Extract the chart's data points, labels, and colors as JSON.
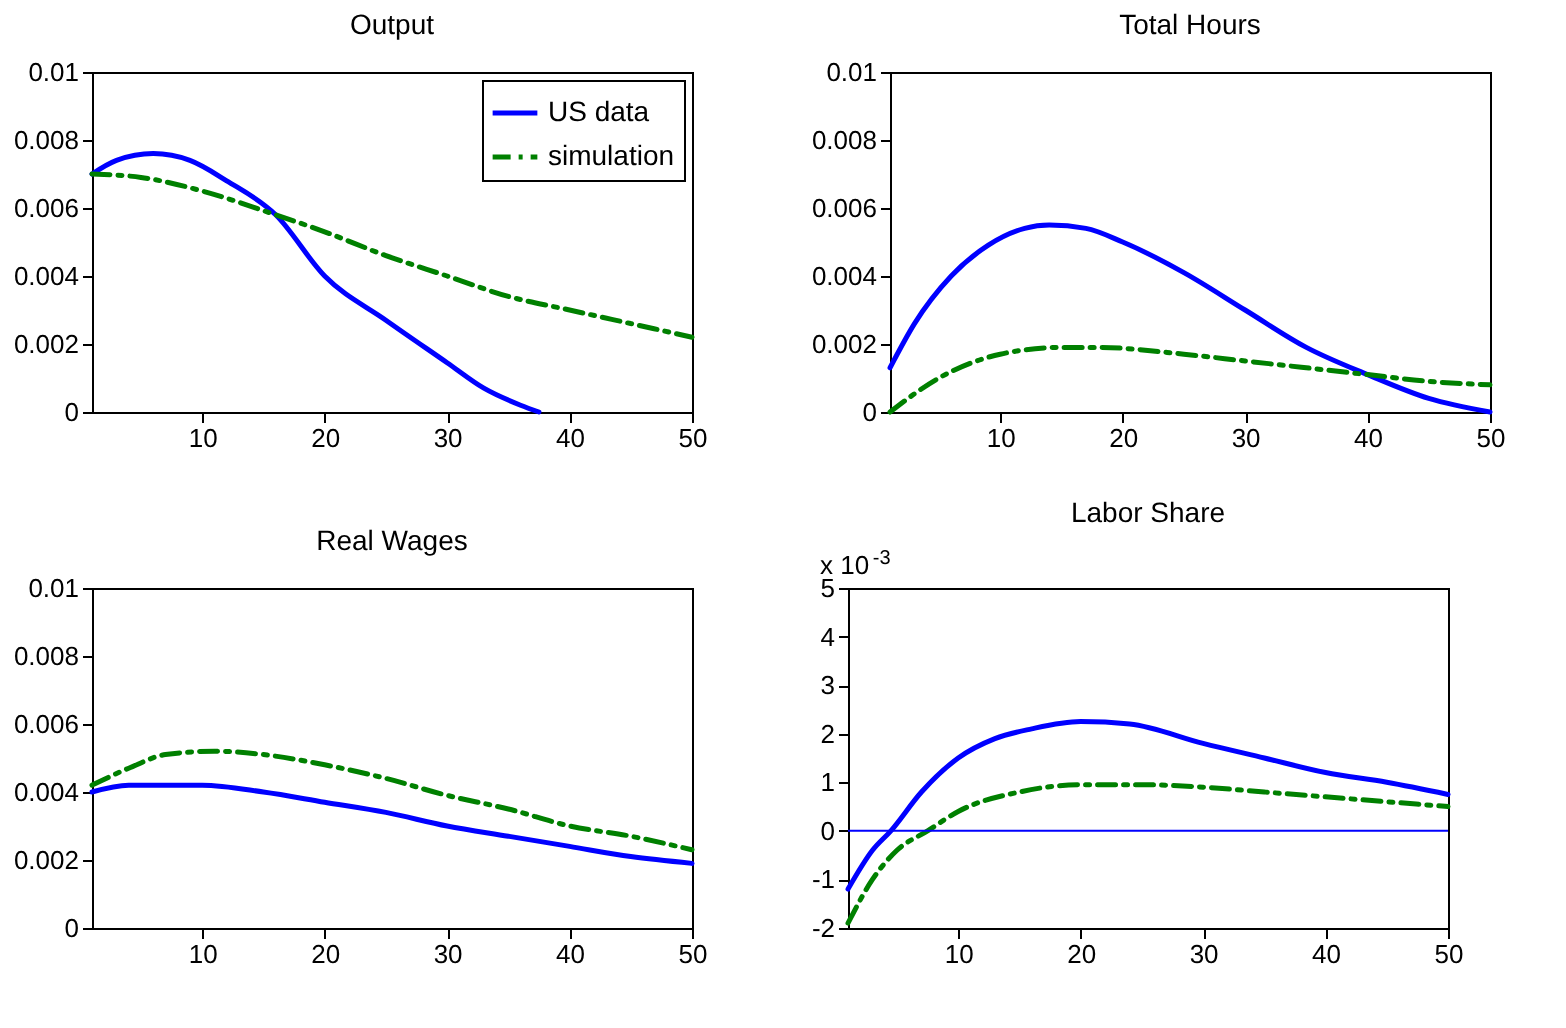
{
  "chart_data": [
    {
      "type": "line",
      "title": "Output",
      "xlim": [
        1,
        50
      ],
      "xticks": [
        10,
        20,
        30,
        40,
        50
      ],
      "ylim": [
        0,
        0.01
      ],
      "yticks": [
        0,
        0.002,
        0.004,
        0.006,
        0.008,
        0.01
      ],
      "grid": false,
      "legend": "top right",
      "series": [
        {
          "name": "US data",
          "color": "#0000ff",
          "line_style": "solid",
          "x": [
            1,
            3,
            6,
            9,
            12,
            16,
            20,
            25,
            30,
            33,
            36,
            37.5
          ],
          "values": [
            0.007,
            0.0074,
            0.0076,
            0.0074,
            0.0068,
            0.0058,
            0.004,
            0.0027,
            0.00145,
            0.0007,
            0.0002,
            0
          ]
        },
        {
          "name": "simulation",
          "color": "#008000",
          "line_style": "dashed",
          "x": [
            1,
            5,
            10,
            16,
            20,
            25,
            30,
            35,
            40,
            45,
            50
          ],
          "values": [
            0.007,
            0.0069,
            0.0065,
            0.0058,
            0.0053,
            0.0046,
            0.004,
            0.0034,
            0.003,
            0.0026,
            0.0022
          ]
        }
      ]
    },
    {
      "type": "line",
      "title": "Total Hours",
      "xlim": [
        1,
        50
      ],
      "xticks": [
        10,
        20,
        30,
        40,
        50
      ],
      "ylim": [
        0,
        0.01
      ],
      "yticks": [
        0,
        0.002,
        0.004,
        0.006,
        0.008,
        0.01
      ],
      "grid": false,
      "series": [
        {
          "color": "#0000ff",
          "line_style": "solid",
          "x": [
            1,
            3,
            6,
            9,
            12,
            14,
            17,
            20,
            25,
            30,
            35,
            40,
            45,
            50
          ],
          "values": [
            0.0013,
            0.0026,
            0.004,
            0.0049,
            0.0054,
            0.0055,
            0.0054,
            0.005,
            0.0041,
            0.003,
            0.0019,
            0.0011,
            0.0004,
            0.0
          ]
        },
        {
          "color": "#008000",
          "line_style": "dashed",
          "x": [
            1,
            5,
            10,
            15,
            18,
            25,
            30,
            35,
            40,
            45,
            50
          ],
          "values": [
            0.0,
            0.001,
            0.0017,
            0.0019,
            0.0019,
            0.0017,
            0.0015,
            0.0013,
            0.0011,
            0.0009,
            0.0008
          ]
        }
      ]
    },
    {
      "type": "line",
      "title": "Real Wages",
      "xlim": [
        1,
        50
      ],
      "xticks": [
        10,
        20,
        30,
        40,
        50
      ],
      "ylim": [
        0,
        0.01
      ],
      "yticks": [
        0,
        0.002,
        0.004,
        0.006,
        0.008,
        0.01
      ],
      "grid": false,
      "series": [
        {
          "color": "#0000ff",
          "line_style": "solid",
          "x": [
            1,
            4,
            7,
            10,
            15,
            20,
            25,
            30,
            35,
            40,
            45,
            50
          ],
          "values": [
            0.004,
            0.0042,
            0.0042,
            0.0042,
            0.004,
            0.0037,
            0.0034,
            0.003,
            0.0027,
            0.0024,
            0.0021,
            0.0019
          ]
        },
        {
          "color": "#008000",
          "line_style": "dashed",
          "x": [
            1,
            4,
            7,
            11,
            15,
            20,
            25,
            30,
            35,
            40,
            45,
            50
          ],
          "values": [
            0.0042,
            0.0047,
            0.0051,
            0.0052,
            0.0051,
            0.0048,
            0.0044,
            0.0039,
            0.0035,
            0.003,
            0.0027,
            0.0023
          ]
        }
      ]
    },
    {
      "type": "line",
      "title": "Labor Share",
      "annotations": [
        "x 10$^{-3}$"
      ],
      "xlim": [
        1,
        50
      ],
      "xticks": [
        10,
        20,
        30,
        40,
        50
      ],
      "ylim": [
        -2,
        5
      ],
      "yticks": [
        -2,
        -1,
        0,
        1,
        2,
        3,
        4,
        5
      ],
      "grid": false,
      "ref_lines": [
        {
          "axis": "y",
          "value": 0,
          "color": "#0000ff"
        }
      ],
      "series": [
        {
          "color": "#0000ff",
          "line_style": "solid",
          "x": [
            1,
            3,
            4.5,
            7,
            10,
            13,
            16,
            20,
            24,
            30,
            35,
            40,
            45,
            50
          ],
          "values": [
            -1.2,
            -0.4,
            0,
            0.8,
            1.5,
            1.9,
            2.1,
            2.25,
            2.2,
            1.8,
            1.5,
            1.2,
            1.0,
            0.75
          ]
        },
        {
          "color": "#008000",
          "line_style": "dashed",
          "x": [
            1,
            3,
            5,
            7.5,
            10,
            15,
            20,
            25,
            30,
            35,
            40,
            45,
            50
          ],
          "values": [
            -1.9,
            -1.0,
            -0.4,
            0,
            0.4,
            0.8,
            0.95,
            0.95,
            0.9,
            0.8,
            0.7,
            0.6,
            0.5
          ]
        }
      ]
    }
  ]
}
